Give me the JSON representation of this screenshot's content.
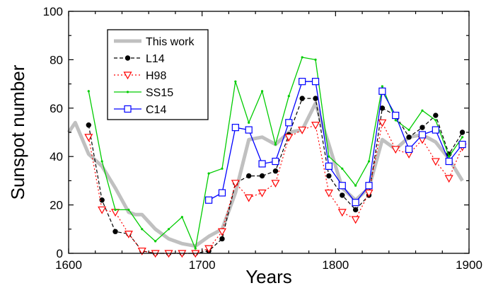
{
  "chart_data": {
    "type": "line",
    "title": "",
    "xlabel": "Years",
    "ylabel": "Sunspot number",
    "xlim": [
      1600,
      1900
    ],
    "ylim": [
      0,
      100
    ],
    "x_ticks": [
      1600,
      1700,
      1800,
      1900
    ],
    "y_ticks": [
      0,
      20,
      40,
      60,
      80,
      100
    ],
    "x_tick_labels": [
      "1600",
      "1700",
      "1800",
      "1900"
    ],
    "y_tick_labels": [
      "0",
      "20",
      "40",
      "60",
      "80",
      "100"
    ],
    "grid": false,
    "legend_position": "top-left",
    "series": [
      {
        "name": "This work",
        "color": "#c0c0c0",
        "style": "thick",
        "marker": "none",
        "x": [
          1600,
          1605,
          1615,
          1625,
          1635,
          1645,
          1650,
          1655,
          1665,
          1675,
          1685,
          1695,
          1705,
          1715,
          1725,
          1735,
          1745,
          1755,
          1765,
          1775,
          1785,
          1795,
          1805,
          1815,
          1825,
          1835,
          1845,
          1855,
          1865,
          1875,
          1885,
          1895
        ],
        "y": [
          50,
          54,
          41,
          36,
          27,
          17,
          16,
          16,
          10,
          6,
          4,
          3,
          7,
          10,
          25,
          47,
          48,
          45,
          50,
          51,
          62,
          45,
          27,
          22,
          27,
          47,
          43,
          48,
          49,
          46,
          39,
          30
        ]
      },
      {
        "name": "L14",
        "color": "#000000",
        "style": "dashed",
        "marker": "filled-circle",
        "x": [
          1615,
          1625,
          1635,
          1645,
          1655,
          1665,
          1675,
          1685,
          1695,
          1705,
          1715,
          1725,
          1735,
          1745,
          1755,
          1765,
          1775,
          1785,
          1795,
          1805,
          1815,
          1825,
          1835,
          1845,
          1855,
          1865,
          1875,
          1885,
          1895
        ],
        "y": [
          53,
          22,
          9,
          8,
          1,
          0,
          0,
          0,
          0,
          1,
          6,
          29,
          32,
          32,
          34,
          49,
          64,
          64,
          32,
          24,
          18,
          24,
          60,
          57,
          48,
          52,
          57,
          41,
          50
        ]
      },
      {
        "name": "H98",
        "color": "#ff0000",
        "style": "dotted",
        "marker": "open-triangle-down",
        "x": [
          1615,
          1625,
          1635,
          1645,
          1655,
          1665,
          1675,
          1685,
          1695,
          1705,
          1715,
          1725,
          1735,
          1745,
          1755,
          1765,
          1775,
          1785,
          1795,
          1805,
          1815,
          1825,
          1835,
          1845,
          1855,
          1865,
          1875,
          1885,
          1895
        ],
        "y": [
          48,
          18,
          17,
          8,
          1,
          0,
          0,
          0,
          0,
          2,
          9,
          29,
          23,
          25,
          29,
          48,
          51,
          53,
          25,
          17,
          14,
          25,
          54,
          43,
          41,
          47,
          38,
          31,
          44
        ]
      },
      {
        "name": "SS15",
        "color": "#00cc00",
        "style": "solid",
        "marker": "small-dot",
        "x": [
          1615,
          1625,
          1635,
          1645,
          1655,
          1665,
          1675,
          1685,
          1695,
          1705,
          1715,
          1725,
          1735,
          1745,
          1755,
          1765,
          1775,
          1785,
          1795,
          1805,
          1815,
          1825,
          1835,
          1845,
          1855,
          1865,
          1875,
          1885,
          1895
        ],
        "y": [
          67,
          38,
          18,
          18,
          10,
          5,
          10,
          15,
          2,
          33,
          35,
          71,
          54,
          67,
          45,
          65,
          81,
          80,
          40,
          35,
          28,
          38,
          69,
          55,
          51,
          59,
          55,
          40,
          48
        ]
      },
      {
        "name": "C14",
        "color": "#0000ff",
        "style": "solid",
        "marker": "open-square",
        "x": [
          1705,
          1715,
          1725,
          1735,
          1745,
          1755,
          1765,
          1775,
          1785,
          1795,
          1805,
          1815,
          1825,
          1835,
          1845,
          1855,
          1865,
          1875,
          1885,
          1895
        ],
        "y": [
          22,
          25,
          52,
          51,
          37,
          38,
          54,
          71,
          71,
          36,
          28,
          21,
          28,
          67,
          57,
          43,
          49,
          51,
          38,
          45
        ]
      }
    ]
  }
}
